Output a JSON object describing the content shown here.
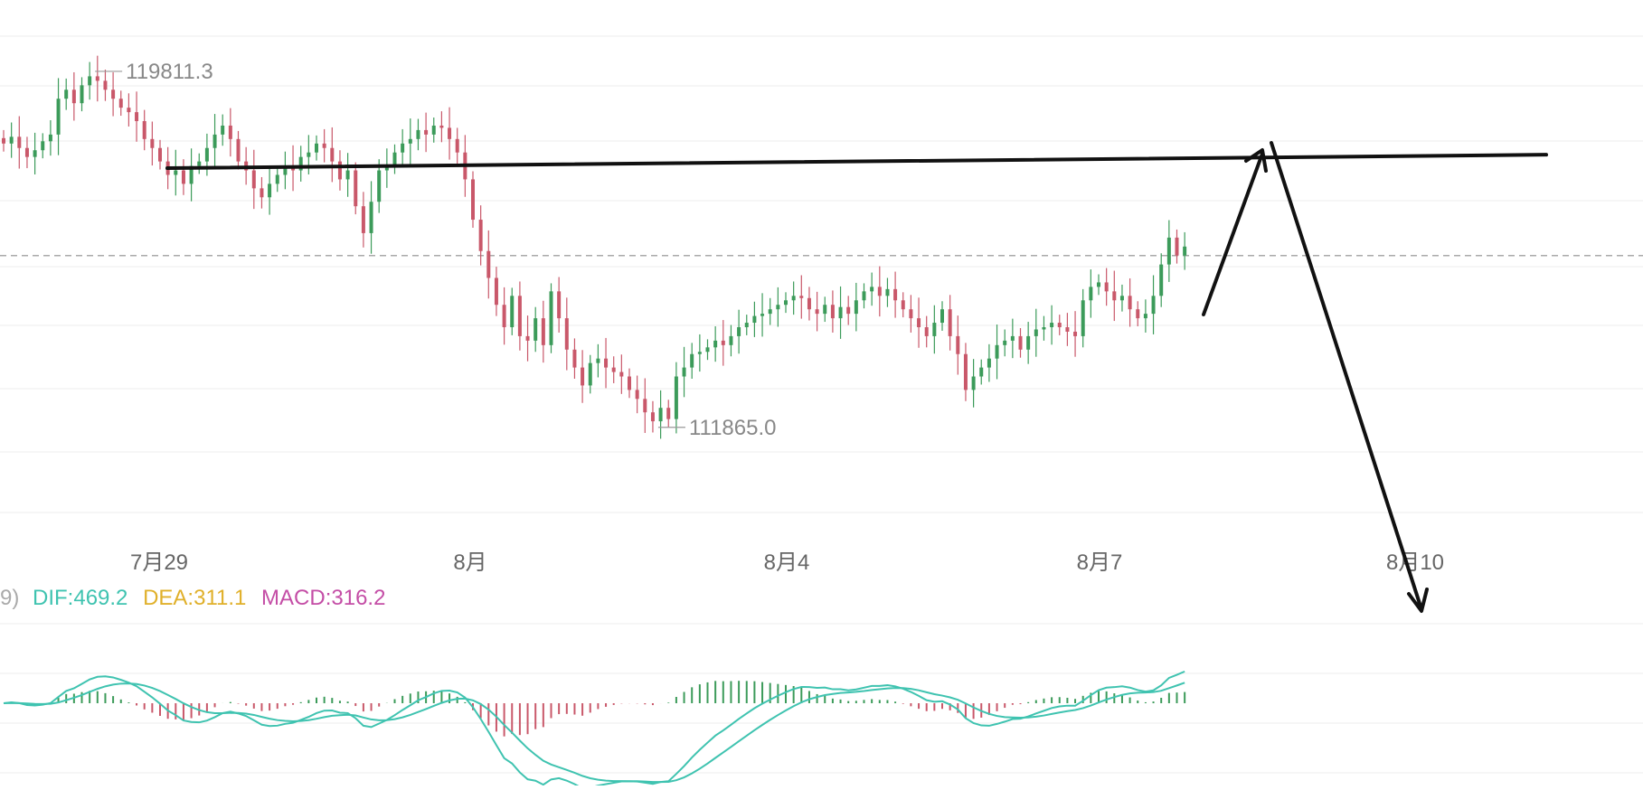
{
  "chart_data": {
    "type": "candlestick",
    "title": "",
    "x_axis": {
      "labels": [
        "7月29",
        "8月",
        "8月4",
        "8月7",
        "8月10"
      ]
    },
    "price_range": [
      109500,
      121000
    ],
    "current_price_line": 115700,
    "extremes": {
      "high_label": "119811.3",
      "high_value": 119811.3,
      "low_label": "111865.0",
      "low_value": 111865.0
    },
    "closes": [
      118200,
      118350,
      118100,
      117900,
      118050,
      118250,
      118400,
      119200,
      119400,
      119100,
      119500,
      119700,
      119600,
      119400,
      119200,
      119000,
      118900,
      118700,
      118300,
      118100,
      117800,
      117500,
      117600,
      117300,
      117700,
      117800,
      118100,
      118400,
      118600,
      118300,
      117800,
      117600,
      117200,
      117000,
      117300,
      117500,
      117700,
      117600,
      117900,
      118000,
      118200,
      118100,
      117800,
      117400,
      117600,
      116800,
      116200,
      116900,
      117600,
      117700,
      118000,
      118200,
      118300,
      118500,
      118400,
      118600,
      118550,
      118300,
      118000,
      117400,
      116500,
      115800,
      115200,
      114600,
      114100,
      114800,
      113900,
      113800,
      114300,
      113700,
      114900,
      114300,
      113600,
      113200,
      112800,
      113300,
      113400,
      113200,
      113100,
      113000,
      112700,
      112500,
      112200,
      112000,
      112300,
      112050,
      113000,
      113200,
      113500,
      113550,
      113650,
      113800,
      113700,
      113900,
      114100,
      114200,
      114350,
      114400,
      114500,
      114600,
      114700,
      114800,
      114750,
      114500,
      114400,
      114600,
      114300,
      114550,
      114400,
      114700,
      114900,
      115000,
      114800,
      114950,
      114700,
      114500,
      114300,
      114100,
      113900,
      114200,
      114500,
      113900,
      113500,
      112700,
      113000,
      113200,
      113400,
      113700,
      113800,
      113900,
      113600,
      113900,
      114050,
      114100,
      114200,
      114100,
      114000,
      113900,
      114700,
      115000,
      115100,
      114900,
      114700,
      114800,
      114500,
      114300,
      114400,
      114800,
      115500,
      116100,
      115700,
      115900
    ],
    "macd": {
      "legend_prefix": "9)",
      "dif_label": "DIF:469.2",
      "dea_label": "DEA:311.1",
      "macd_label": "MACD:316.2",
      "dif_value": 469.2,
      "dea_value": 311.1,
      "macd_value": 316.2
    },
    "colors": {
      "up": "#3c9b5a",
      "down": "#c9586a",
      "dif": "#3fc3b0",
      "dea": "#e0b02a",
      "macd": "#c44ea6",
      "drawing": "#111111"
    },
    "annotations": [
      {
        "type": "trend-line",
        "from_price": 117650,
        "to_price": 117950
      },
      {
        "type": "arrow",
        "direction": "up"
      },
      {
        "type": "arrow",
        "direction": "down"
      }
    ]
  }
}
